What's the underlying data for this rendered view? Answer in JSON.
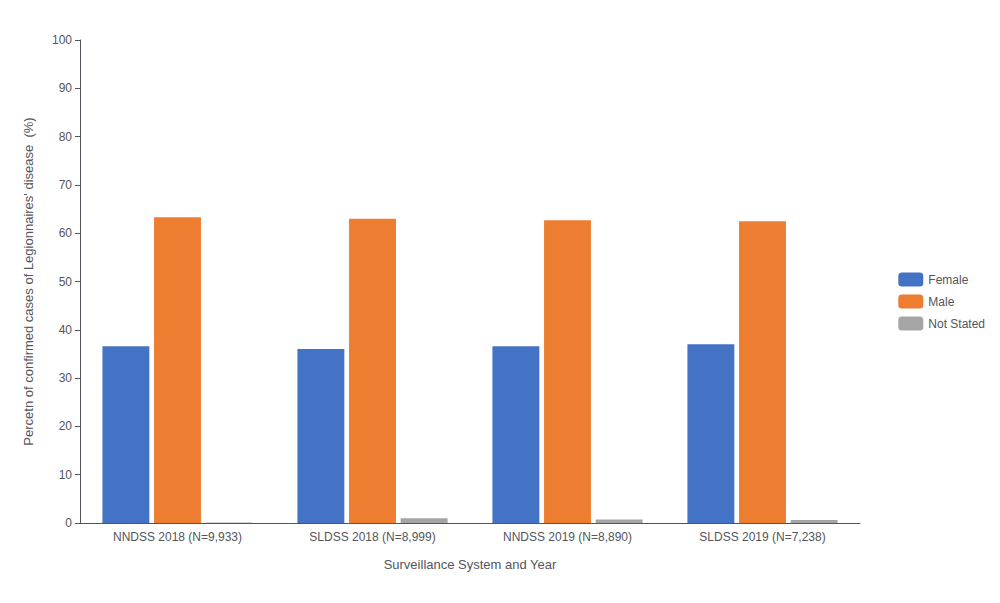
{
  "chart_data": {
    "type": "bar",
    "categories": [
      "NNDSS 2018 (N=9,933)",
      "SLDSS 2018 (N=8,999)",
      "NNDSS 2019 (N=8,890)",
      "SLDSS 2019 (N=7,238)"
    ],
    "series": [
      {
        "name": "Female",
        "color": "#4472c4",
        "values": [
          36.6,
          36.0,
          36.6,
          37.0
        ]
      },
      {
        "name": "Male",
        "color": "#ed7d31",
        "values": [
          63.3,
          63.0,
          62.7,
          62.5
        ]
      },
      {
        "name": "Not Stated",
        "color": "#a5a5a5",
        "values": [
          0.1,
          1.0,
          0.7,
          0.6
        ]
      }
    ],
    "xlabel": "Surveillance System and Year",
    "ylabel": "Percetn of confirmed cases of Legionnaires' disease  (%)",
    "ylim": [
      0,
      100
    ],
    "yticks": [
      0,
      10,
      20,
      30,
      40,
      50,
      60,
      70,
      80,
      90,
      100
    ],
    "grid": false,
    "legend": "right"
  }
}
